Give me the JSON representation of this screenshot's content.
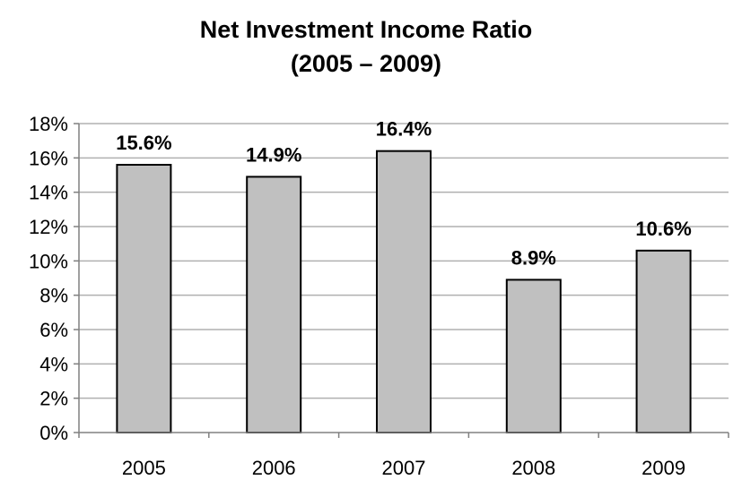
{
  "chart_data": {
    "type": "bar",
    "title": "Net Investment Income Ratio",
    "subtitle": "(2005 – 2009)",
    "xlabel": "",
    "ylabel": "",
    "categories": [
      "2005",
      "2006",
      "2007",
      "2008",
      "2009"
    ],
    "values": [
      15.6,
      14.9,
      16.4,
      8.9,
      10.6
    ],
    "data_labels": [
      "15.6%",
      "14.9%",
      "16.4%",
      "8.9%",
      "10.6%"
    ],
    "ylim": [
      0,
      18
    ],
    "yticks": [
      0,
      2,
      4,
      6,
      8,
      10,
      12,
      14,
      16,
      18
    ],
    "ytick_labels": [
      "0%",
      "2%",
      "4%",
      "6%",
      "8%",
      "10%",
      "12%",
      "14%",
      "16%",
      "18%"
    ],
    "grid": true,
    "legend": "none",
    "bar_color": "#c0c0c0",
    "bar_edge_color": "#000000",
    "grid_color": "#b0b0b0"
  }
}
